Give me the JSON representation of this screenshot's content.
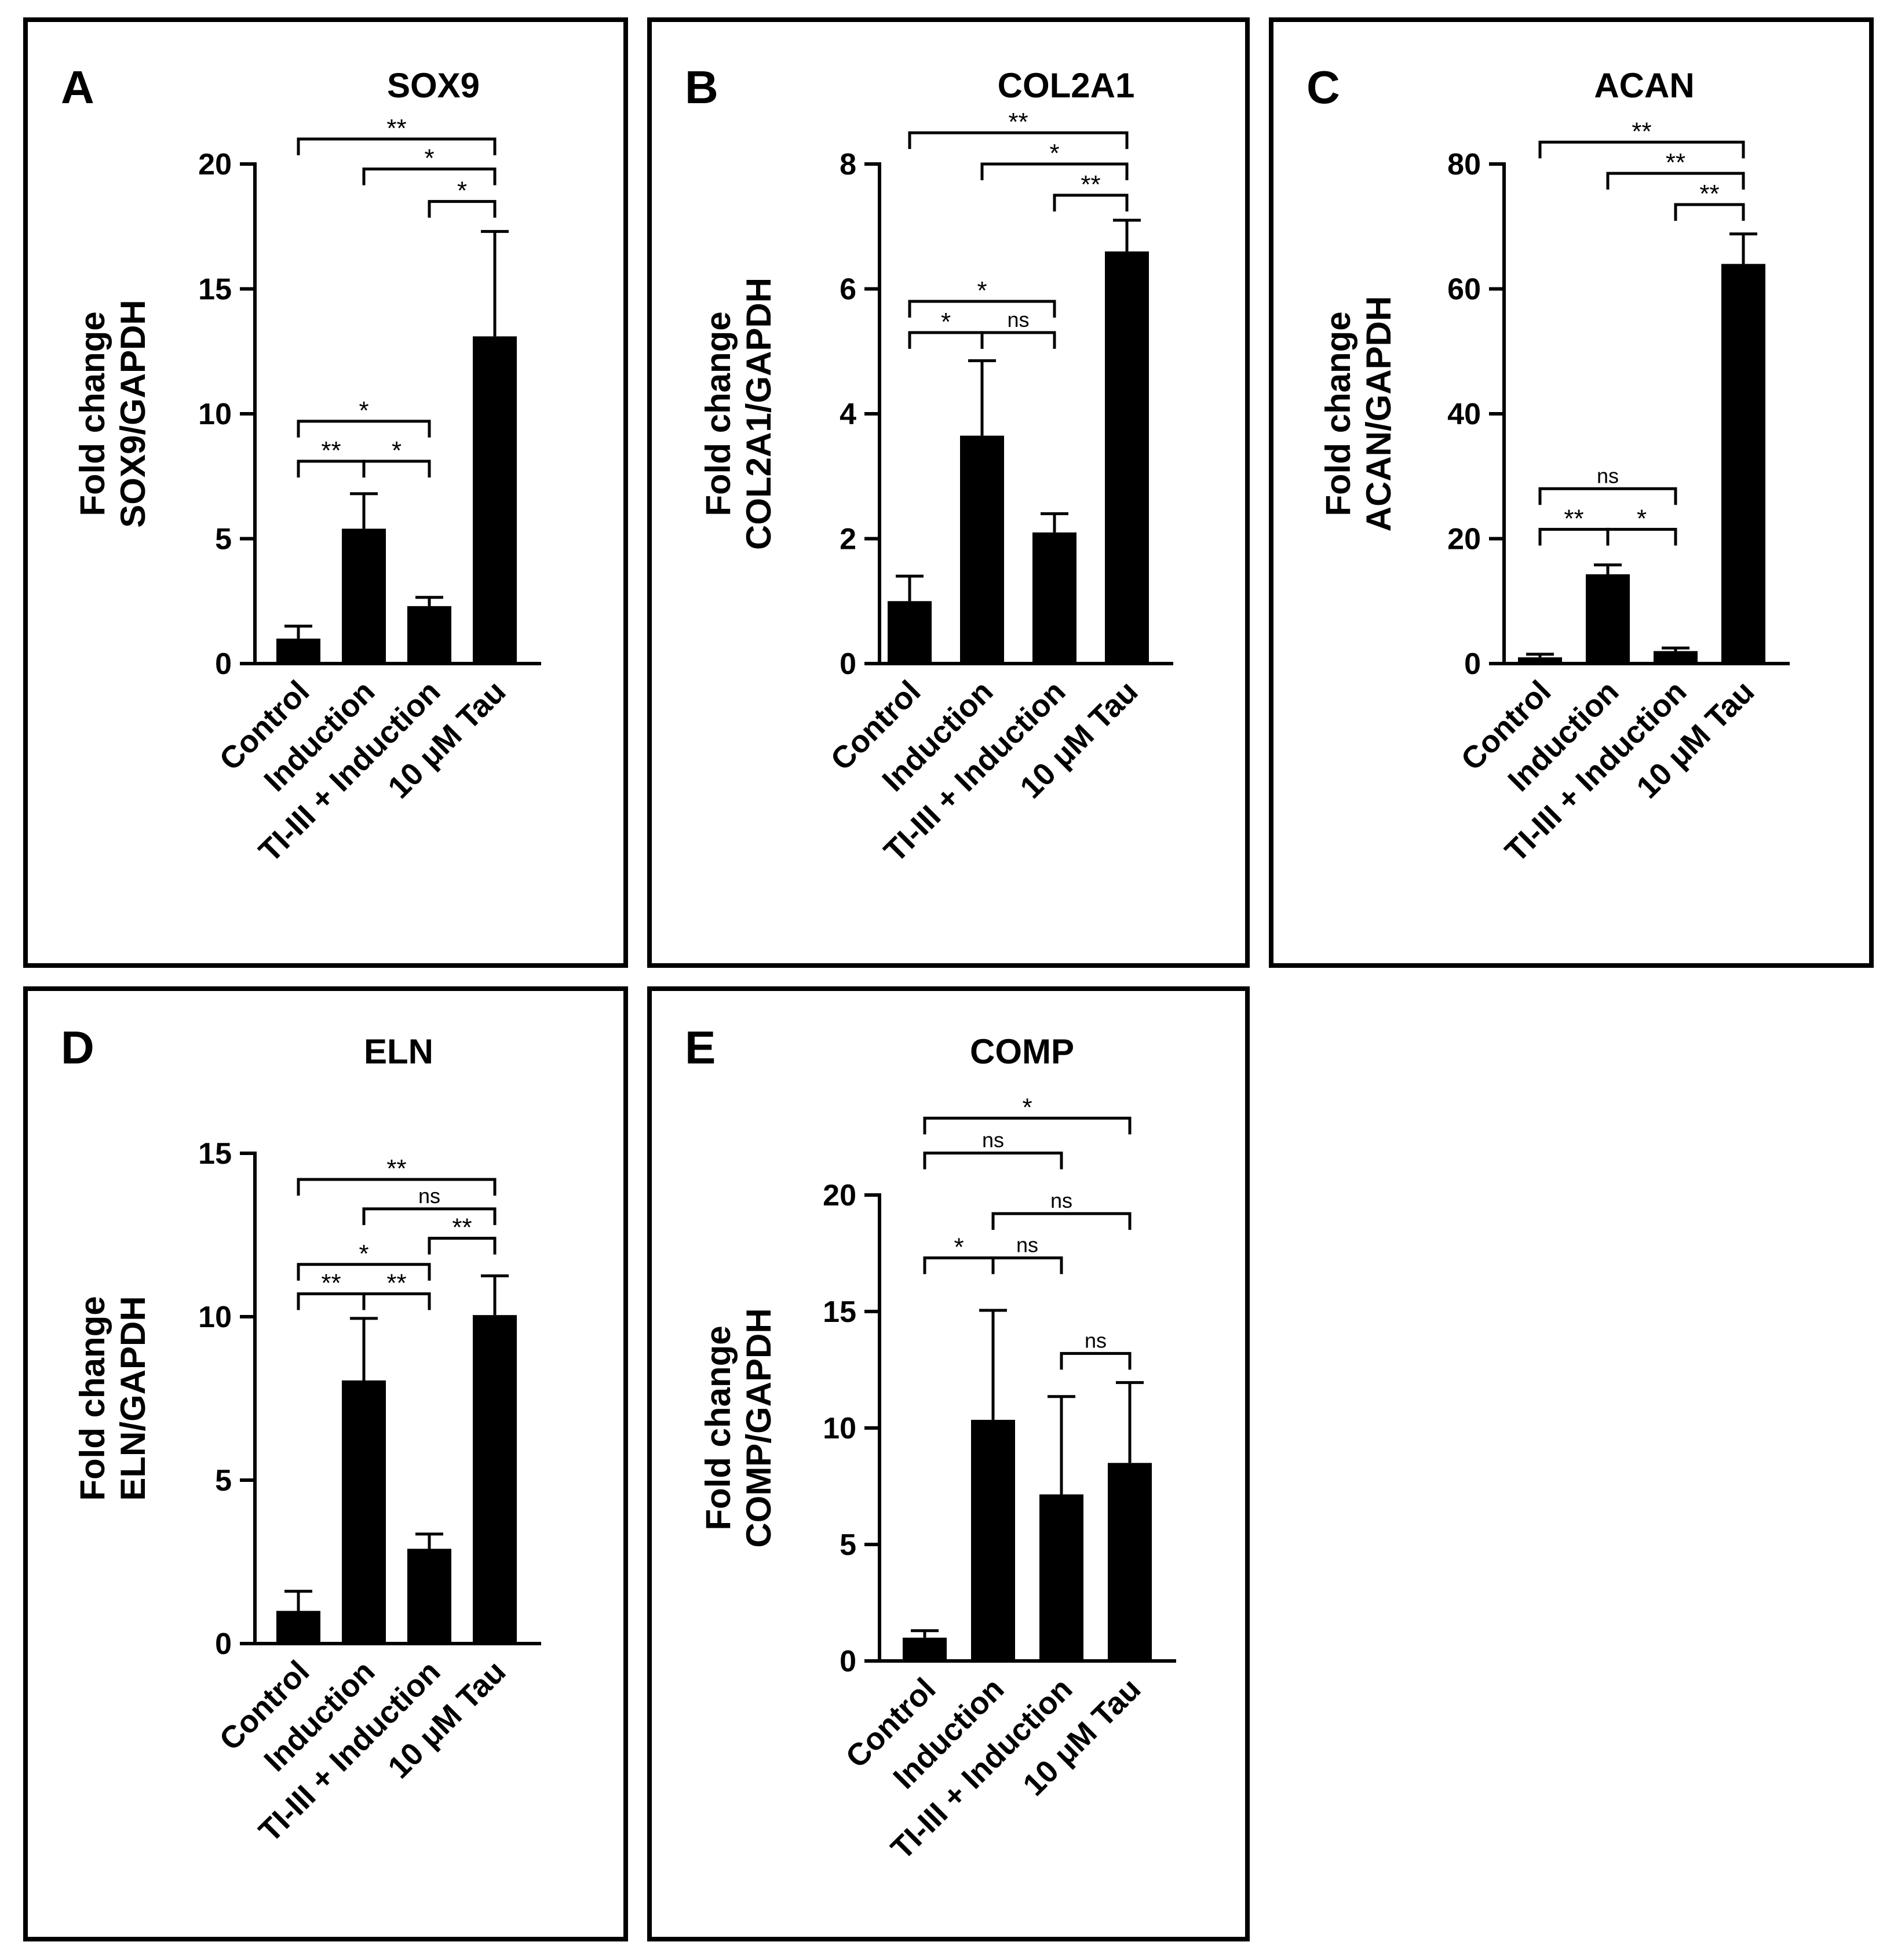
{
  "figure": {
    "categories": [
      "Control",
      "Induction",
      "TI-III + Induction",
      "10 μM Tau"
    ]
  },
  "chart_data": [
    {
      "panel": "A",
      "type": "bar",
      "title": "SOX9",
      "ylabel": [
        "Fold change",
        "SOX9/GAPDH"
      ],
      "categories": [
        "Control",
        "Induction",
        "TI-III + Induction",
        "10 μM Tau"
      ],
      "values": [
        1.0,
        5.4,
        2.3,
        13.1
      ],
      "errors": [
        0.5,
        1.4,
        0.35,
        4.2
      ],
      "ylim": [
        0,
        20
      ],
      "yticks": [
        0,
        5,
        10,
        15,
        20
      ],
      "significance": [
        {
          "from": 0,
          "to": 3,
          "label": "**",
          "y": 21
        },
        {
          "from": 1,
          "to": 3,
          "label": "*",
          "y": 19.8
        },
        {
          "from": 2,
          "to": 3,
          "label": "*",
          "y": 18.5
        },
        {
          "from": 0,
          "to": 2,
          "label": "*",
          "y": 9.7
        },
        {
          "from": 0,
          "to": 1,
          "label": "**",
          "y": 8.1
        },
        {
          "from": 1,
          "to": 2,
          "label": "*",
          "y": 8.1
        }
      ]
    },
    {
      "panel": "B",
      "type": "bar",
      "title": "COL2A1",
      "ylabel": [
        "Fold change",
        "COL2A1/GAPDH"
      ],
      "categories": [
        "Control",
        "Induction",
        "TI-III + Induction",
        "10 μM Tau"
      ],
      "values": [
        1.0,
        3.65,
        2.1,
        6.6
      ],
      "errors": [
        0.4,
        1.2,
        0.3,
        0.5
      ],
      "ylim": [
        0,
        8
      ],
      "yticks": [
        0,
        2,
        4,
        6,
        8
      ],
      "significance": [
        {
          "from": 0,
          "to": 3,
          "label": "**",
          "y": 8.5
        },
        {
          "from": 1,
          "to": 3,
          "label": "*",
          "y": 8.0
        },
        {
          "from": 2,
          "to": 3,
          "label": "**",
          "y": 7.5
        },
        {
          "from": 0,
          "to": 2,
          "label": "*",
          "y": 5.8
        },
        {
          "from": 0,
          "to": 1,
          "label": "*",
          "y": 5.3
        },
        {
          "from": 1,
          "to": 2,
          "label": "ns",
          "y": 5.3
        }
      ]
    },
    {
      "panel": "C",
      "type": "bar",
      "title": "ACAN",
      "ylabel": [
        "Fold change",
        "ACAN/GAPDH"
      ],
      "categories": [
        "Control",
        "Induction",
        "TI-III + Induction",
        "10 μM Tau"
      ],
      "values": [
        1.0,
        14.3,
        2.0,
        64.0
      ],
      "errors": [
        0.5,
        1.5,
        0.5,
        4.8
      ],
      "ylim": [
        0,
        80
      ],
      "yticks": [
        0,
        20,
        40,
        60,
        80
      ],
      "significance": [
        {
          "from": 0,
          "to": 3,
          "label": "**",
          "y": 83.5
        },
        {
          "from": 1,
          "to": 3,
          "label": "**",
          "y": 78.5
        },
        {
          "from": 2,
          "to": 3,
          "label": "**",
          "y": 73.5
        },
        {
          "from": 0,
          "to": 2,
          "label": "ns",
          "y": 28
        },
        {
          "from": 0,
          "to": 1,
          "label": "**",
          "y": 21.5
        },
        {
          "from": 1,
          "to": 2,
          "label": "*",
          "y": 21.5
        }
      ]
    },
    {
      "panel": "D",
      "type": "bar",
      "title": "ELN",
      "ylabel": [
        "Fold change",
        "ELN/GAPDH"
      ],
      "categories": [
        "Control",
        "Induction",
        "TI-III + Induction",
        "10 μM Tau"
      ],
      "values": [
        1.0,
        8.05,
        2.9,
        10.05
      ],
      "errors": [
        0.6,
        1.9,
        0.45,
        1.2
      ],
      "ylim": [
        0,
        15
      ],
      "yticks": [
        0,
        5,
        10,
        15
      ],
      "significance": [
        {
          "from": 0,
          "to": 3,
          "label": "**",
          "y": 14.2
        },
        {
          "from": 1,
          "to": 3,
          "label": "ns",
          "y": 13.3
        },
        {
          "from": 2,
          "to": 3,
          "label": "**",
          "y": 12.4
        },
        {
          "from": 0,
          "to": 2,
          "label": "*",
          "y": 11.6
        },
        {
          "from": 0,
          "to": 1,
          "label": "**",
          "y": 10.7
        },
        {
          "from": 1,
          "to": 2,
          "label": "**",
          "y": 10.7
        }
      ]
    },
    {
      "panel": "E",
      "type": "bar",
      "title": "COMP",
      "ylabel": [
        "Fold change",
        "COMP/GAPDH"
      ],
      "categories": [
        "Control",
        "Induction",
        "TI-III + Induction",
        "10 μM Tau"
      ],
      "values": [
        1.0,
        10.35,
        7.15,
        8.5
      ],
      "errors": [
        0.3,
        4.7,
        4.2,
        3.45
      ],
      "ylim": [
        0,
        20
      ],
      "yticks": [
        0,
        5,
        10,
        15,
        20
      ],
      "significance": [
        {
          "from": 0,
          "to": 3,
          "label": "*",
          "y": 23.3
        },
        {
          "from": 0,
          "to": 2,
          "label": "ns",
          "y": 21.8
        },
        {
          "from": 1,
          "to": 3,
          "label": "ns",
          "y": 19.2
        },
        {
          "from": 0,
          "to": 1,
          "label": "*",
          "y": 17.3
        },
        {
          "from": 1,
          "to": 2,
          "label": "ns",
          "y": 17.3
        },
        {
          "from": 2,
          "to": 3,
          "label": "ns",
          "y": 13.2
        }
      ]
    }
  ]
}
